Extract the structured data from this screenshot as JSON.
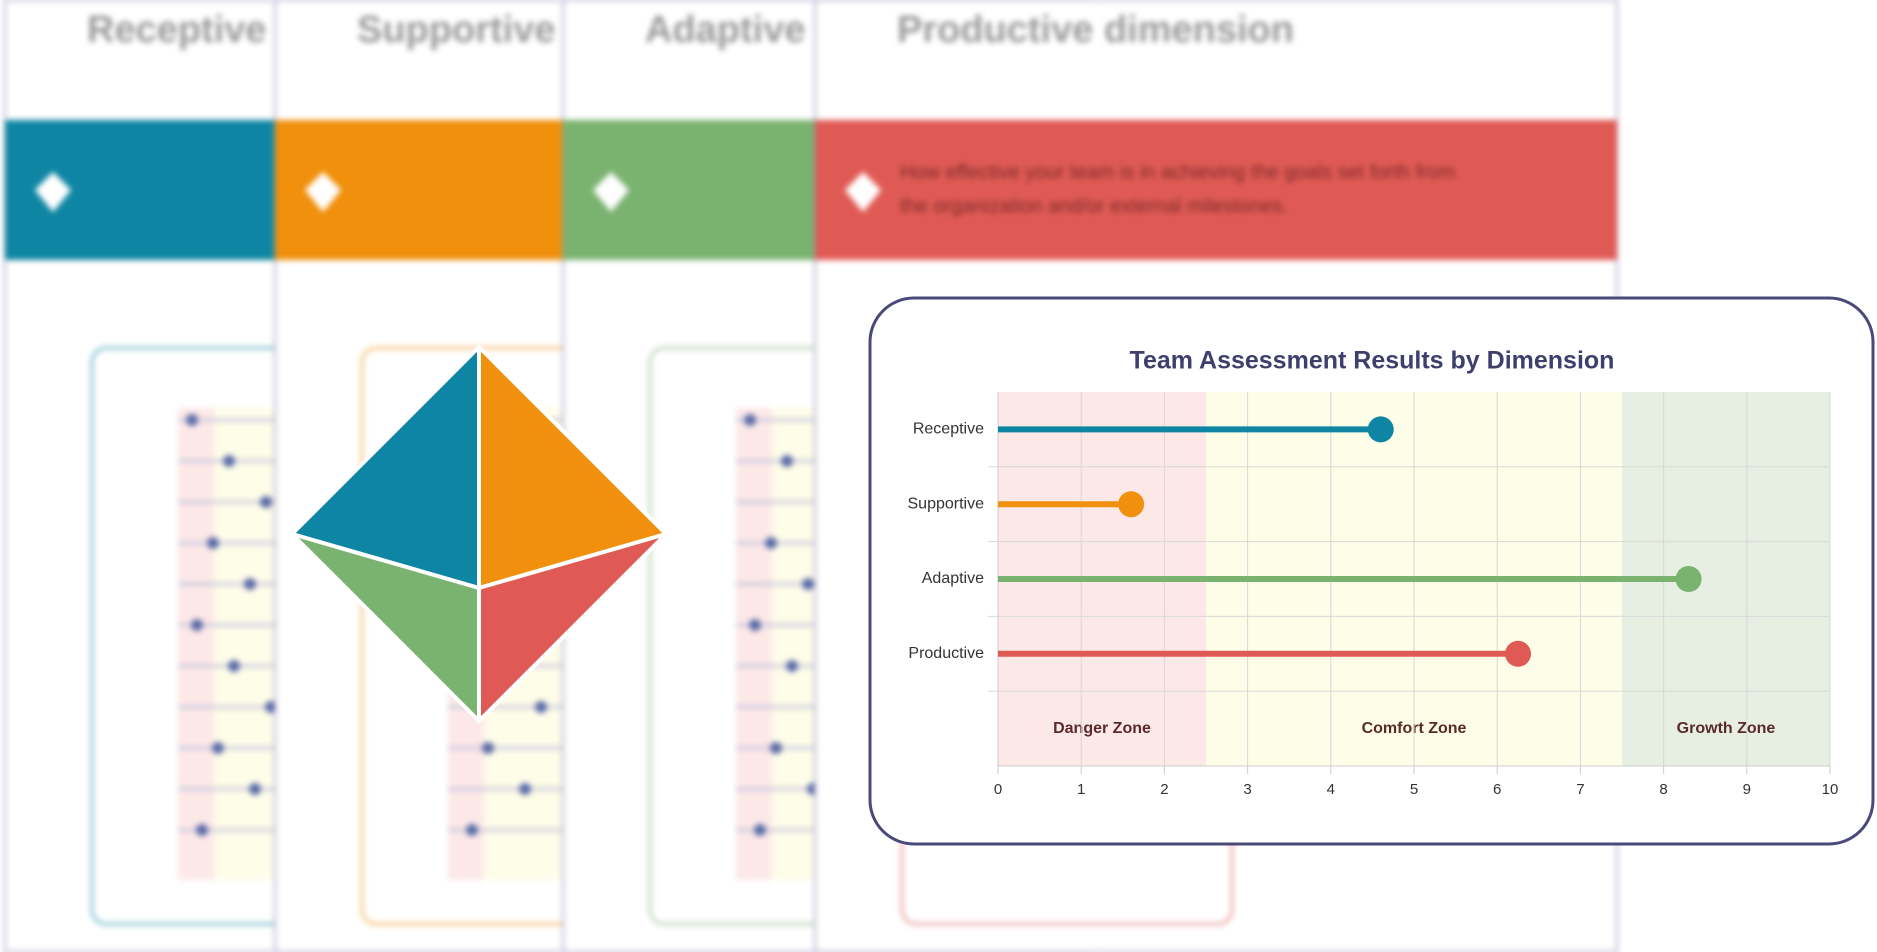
{
  "background_pages": [
    {
      "title": "Receptive",
      "color": "#0e86a3"
    },
    {
      "title": "Supportive",
      "color": "#f0900c"
    },
    {
      "title": "Adaptive",
      "color": "#7ab26f"
    },
    {
      "title": "Productive dimension",
      "color": "#e05a55",
      "description": [
        "How effective your team is in achieving the goals set forth from",
        "the organization and/or external milestones."
      ]
    }
  ],
  "chart_data": {
    "type": "lollipop",
    "title": "Team Assessment Results by Dimension",
    "categories": [
      "Receptive",
      "Supportive",
      "Adaptive",
      "Productive"
    ],
    "values": [
      4.6,
      1.6,
      8.3,
      6.25
    ],
    "colors": [
      "#0e86a3",
      "#f0900c",
      "#7ab26f",
      "#e05a55"
    ],
    "xlim": [
      0,
      10
    ],
    "xticks": [
      0,
      1,
      2,
      3,
      4,
      5,
      6,
      7,
      8,
      9,
      10
    ],
    "grid": true,
    "zones": [
      {
        "label": "Danger Zone",
        "range": [
          0,
          2.5
        ],
        "color": "#fde8e8"
      },
      {
        "label": "Comfort Zone",
        "range": [
          2.5,
          7.5
        ],
        "color": "#fefde8"
      },
      {
        "label": "Growth Zone",
        "range": [
          7.5,
          10
        ],
        "color": "#e6efe2"
      }
    ]
  }
}
